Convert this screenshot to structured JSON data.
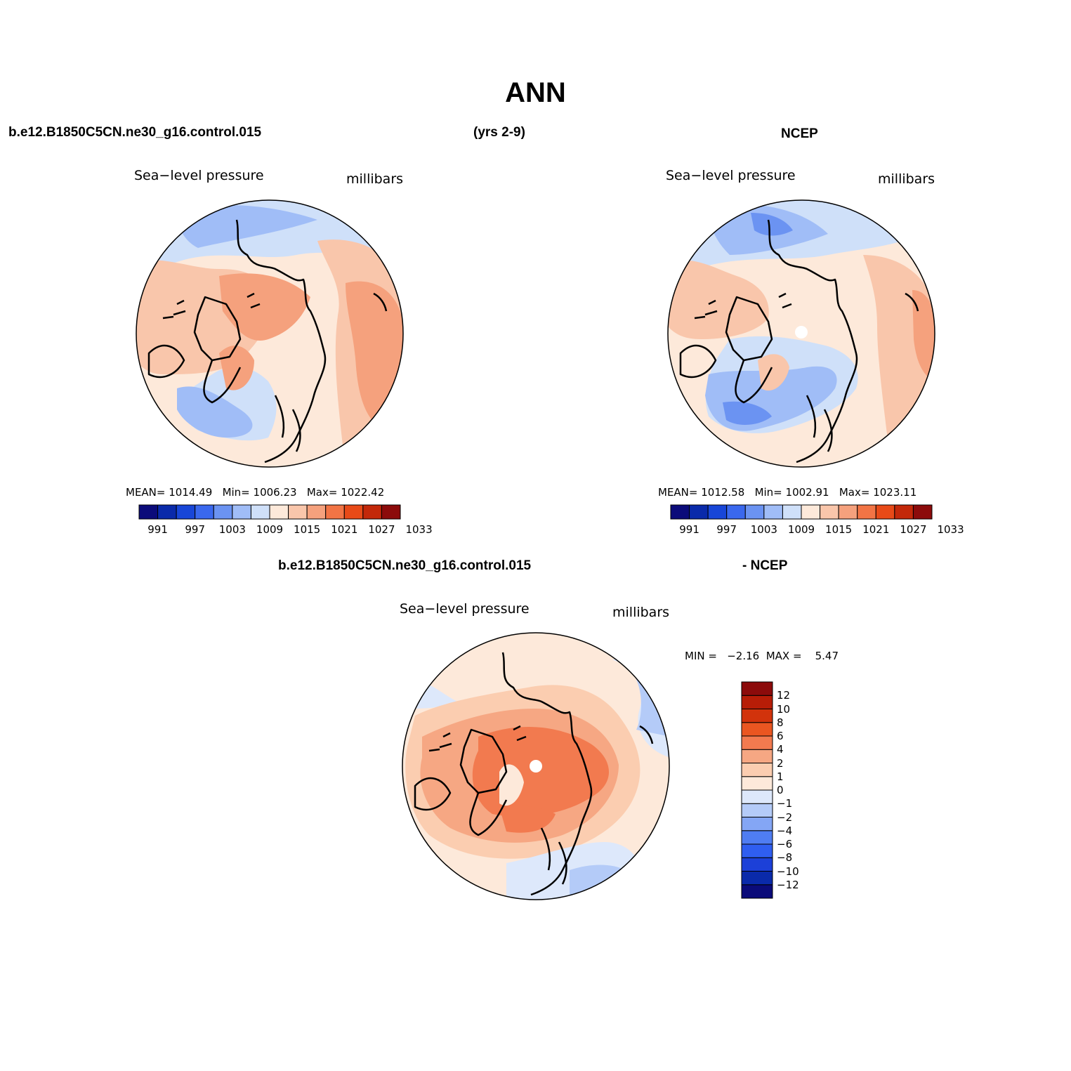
{
  "title": "ANN",
  "header_top": {
    "case": "b.e12.B1850C5CN.ne30_g16.control.015",
    "years": "(yrs 2-9)",
    "obs": "NCEP"
  },
  "header_diff": {
    "case": "b.e12.B1850C5CN.ne30_g16.control.015",
    "obs": "- NCEP"
  },
  "panels": {
    "model": {
      "variable": "Sea−level pressure",
      "units": "millibars",
      "stats": "MEAN= 1014.49   Min= 1006.23   Max= 1022.42"
    },
    "obs": {
      "variable": "Sea−level pressure",
      "units": "millibars",
      "stats": "MEAN= 1012.58   Min= 1002.91   Max= 1023.11"
    },
    "diff": {
      "variable": "Sea−level pressure",
      "units": "millibars",
      "stats": "MIN =   −2.16  MAX =    5.47"
    }
  },
  "colorbar_abs": {
    "colors": [
      "#0b0b7a",
      "#0a2aaa",
      "#1846d8",
      "#3a68ee",
      "#6b93f2",
      "#a0bdf7",
      "#cfe0f9",
      "#fde9da",
      "#f9c6ab",
      "#f5a17d",
      "#f27445",
      "#e84a18",
      "#c3280a",
      "#8c0b0b"
    ],
    "tick_labels": [
      "991",
      "997",
      "1003",
      "1009",
      "1015",
      "1021",
      "1027",
      "1033"
    ]
  },
  "colorbar_diff": {
    "colors": [
      "#0b0b7a",
      "#0a2aaa",
      "#1c40d8",
      "#2f5ef0",
      "#4f7df2",
      "#84a6f5",
      "#b4cbf8",
      "#dde8fb",
      "#fde9da",
      "#fbcdb0",
      "#f6a783",
      "#f27a4f",
      "#ea5621",
      "#d2330c",
      "#b71d07",
      "#8c0b0b"
    ],
    "tick_labels": [
      "12",
      "10",
      "8",
      "6",
      "4",
      "2",
      "1",
      "0",
      "−1",
      "−2",
      "−4",
      "−6",
      "−8",
      "−10",
      "−12"
    ]
  }
}
